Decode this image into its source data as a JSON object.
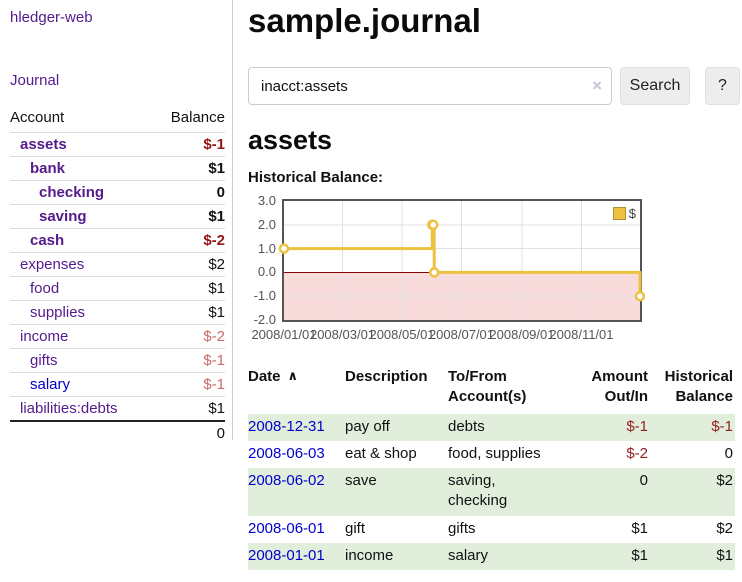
{
  "sidebar": {
    "app_title": "hledger-web",
    "journal_label": "Journal",
    "accounts": {
      "col_account": "Account",
      "col_balance": "Balance",
      "rows": [
        {
          "name": "assets",
          "depth": 1,
          "bold": true,
          "balance": "$-1",
          "balance_style": "neg-strong"
        },
        {
          "name": "bank",
          "depth": 2,
          "bold": true,
          "balance": "$1",
          "balance_style": "normal"
        },
        {
          "name": "checking",
          "depth": 3,
          "bold": true,
          "balance": "0",
          "balance_style": "normal"
        },
        {
          "name": "saving",
          "depth": 3,
          "bold": true,
          "balance": "$1",
          "balance_style": "normal"
        },
        {
          "name": "cash",
          "depth": 2,
          "bold": true,
          "balance": "$-2",
          "balance_style": "neg-strong"
        },
        {
          "name": "expenses",
          "depth": 1,
          "bold": false,
          "balance": "$2",
          "balance_style": "normal"
        },
        {
          "name": "food",
          "depth": 2,
          "bold": false,
          "balance": "$1",
          "balance_style": "normal"
        },
        {
          "name": "supplies",
          "depth": 2,
          "bold": false,
          "balance": "$1",
          "balance_style": "normal"
        },
        {
          "name": "income",
          "depth": 1,
          "bold": false,
          "balance": "$-2",
          "balance_style": "neg-soft"
        },
        {
          "name": "gifts",
          "depth": 2,
          "bold": false,
          "balance": "$-1",
          "balance_style": "neg-soft"
        },
        {
          "name": "salary",
          "depth": 2,
          "bold": false,
          "balance": "$-1",
          "balance_style": "neg-soft",
          "link_state": "unvisited"
        },
        {
          "name": "liabilities:debts",
          "depth": 1,
          "bold": false,
          "balance": "$1",
          "balance_style": "normal"
        }
      ],
      "total": "0"
    }
  },
  "main": {
    "title": "sample.journal",
    "search": {
      "value": "inacct:assets",
      "clear_icon": "×",
      "button_label": "Search",
      "help_label": "?"
    },
    "account_heading": "assets",
    "table": {
      "headers": {
        "date": "Date",
        "sort_indicator": "∧",
        "description": "Description",
        "accounts": "To/From Account(s)",
        "amount": "Amount Out/In",
        "balance": "Historical Balance"
      },
      "rows": [
        {
          "date": "2008-12-31",
          "description": "pay off",
          "accounts": "debts",
          "amount": "$-1",
          "amount_negative": true,
          "balance": "$-1",
          "balance_negative": true
        },
        {
          "date": "2008-06-03",
          "description": "eat & shop",
          "accounts": "food, supplies",
          "amount": "$-2",
          "amount_negative": true,
          "balance": "0",
          "balance_negative": false
        },
        {
          "date": "2008-06-02",
          "description": "save",
          "accounts": "saving, checking",
          "amount": "0",
          "amount_negative": false,
          "balance": "$2",
          "balance_negative": false
        },
        {
          "date": "2008-06-01",
          "description": "gift",
          "accounts": "gifts",
          "amount": "$1",
          "amount_negative": false,
          "balance": "$2",
          "balance_negative": false
        },
        {
          "date": "2008-01-01",
          "description": "income",
          "accounts": "salary",
          "amount": "$1",
          "amount_negative": false,
          "balance": "$1",
          "balance_negative": false
        }
      ]
    }
  },
  "chart_data": {
    "type": "line",
    "step": true,
    "title": "Historical Balance:",
    "series": [
      {
        "name": "$",
        "color": "#edc240",
        "x": [
          "2008-01-01",
          "2008-06-01",
          "2008-06-02",
          "2008-06-03",
          "2008-12-31"
        ],
        "y": [
          1,
          2,
          2,
          0,
          -1
        ]
      }
    ],
    "xlim": [
      "2008-01-01",
      "2008-12-31"
    ],
    "ylim": [
      -2,
      3
    ],
    "yticks": [
      "3.0",
      "2.0",
      "1.0",
      "0.0",
      "-1.0",
      "-2.0"
    ],
    "xticks": [
      "2008/01/01",
      "2008/03/01",
      "2008/05/01",
      "2008/07/01",
      "2008/09/01",
      "2008/11/01"
    ],
    "grid": true,
    "legend_position": "top-right",
    "negative_region_color": "#f8dcdc",
    "zero_line_color": "#8b0000",
    "grid_color": "#e0e0e0",
    "border_color": "#545454"
  },
  "colors": {
    "link_visited": "#551a8b",
    "link_unvisited": "#0000cc",
    "negative_strong": "#961616",
    "negative_soft": "#c96b6b",
    "row_stripe": "#e1eedc",
    "series_gold": "#edc240"
  }
}
